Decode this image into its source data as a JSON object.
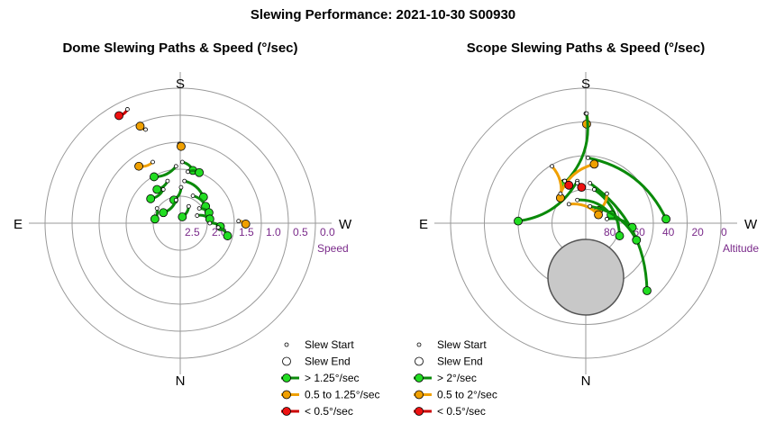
{
  "title": "Slewing Performance: 2021-10-30 S00930",
  "colors": {
    "green": "#0a8a0a",
    "green_fill": "#22dd22",
    "orange": "#f0a000",
    "orange_fill": "#f0a000",
    "red": "#cc0000",
    "red_fill": "#ee1111",
    "ring": "#999999",
    "axis_label": "#7a2a8a"
  },
  "chart_data": [
    {
      "type": "polar",
      "title": "Dome Slewing Paths & Speed (°/sec)",
      "directions": {
        "top": "S",
        "bottom": "N",
        "left": "E",
        "right": "W"
      },
      "radial_label": "Speed",
      "radial_ticks": [
        "2.5",
        "2.0",
        "1.5",
        "1.0",
        "0.5",
        "0.0"
      ],
      "radial_range": [
        2.5,
        0.0
      ],
      "legend": [
        "Slew Start",
        "Slew End",
        "> 1.25°/sec",
        "0.5 to 1.25°/sec",
        "< 0.5°/sec"
      ],
      "slews": [
        {
          "speed_class": "slow",
          "start": [
            -1.25,
            2.7
          ],
          "end": [
            -1.45,
            2.55
          ]
        },
        {
          "speed_class": "medium",
          "start": [
            -0.82,
            2.22
          ],
          "end": [
            -0.95,
            2.3
          ]
        },
        {
          "speed_class": "medium",
          "start": [
            -0.02,
            1.88
          ],
          "end": [
            0.02,
            1.82
          ]
        },
        {
          "speed_class": "medium",
          "start": [
            -0.65,
            1.45
          ],
          "end": [
            -0.98,
            1.35
          ]
        },
        {
          "speed_class": "fast",
          "start": [
            -0.1,
            1.35
          ],
          "end": [
            -0.62,
            1.1
          ]
        },
        {
          "speed_class": "fast",
          "start": [
            0.05,
            1.45
          ],
          "end": [
            0.3,
            1.25
          ]
        },
        {
          "speed_class": "fast",
          "start": [
            0.18,
            1.22
          ],
          "end": [
            0.45,
            1.2
          ]
        },
        {
          "speed_class": "fast",
          "start": [
            -0.3,
            1.0
          ],
          "end": [
            -0.55,
            0.8
          ]
        },
        {
          "speed_class": "fast",
          "start": [
            0.1,
            1.0
          ],
          "end": [
            0.55,
            0.62
          ]
        },
        {
          "speed_class": "fast",
          "start": [
            -0.4,
            0.8
          ],
          "end": [
            -0.7,
            0.58
          ]
        },
        {
          "speed_class": "fast",
          "start": [
            0.02,
            0.85
          ],
          "end": [
            -0.15,
            0.55
          ]
        },
        {
          "speed_class": "fast",
          "start": [
            0.3,
            0.65
          ],
          "end": [
            0.6,
            0.4
          ]
        },
        {
          "speed_class": "fast",
          "start": [
            0.45,
            0.35
          ],
          "end": [
            0.68,
            0.25
          ]
        },
        {
          "speed_class": "fast",
          "start": [
            -0.55,
            0.35
          ],
          "end": [
            -0.6,
            0.1
          ]
        },
        {
          "speed_class": "fast",
          "start": [
            0.4,
            0.18
          ],
          "end": [
            0.7,
            0.1
          ]
        },
        {
          "speed_class": "fast",
          "start": [
            0.7,
            0.0
          ],
          "end": [
            0.95,
            -0.08
          ]
        },
        {
          "speed_class": "fast",
          "start": [
            0.9,
            -0.1
          ],
          "end": [
            1.12,
            -0.3
          ]
        },
        {
          "speed_class": "fast",
          "start": [
            -0.1,
            0.55
          ],
          "end": [
            -0.4,
            0.25
          ]
        },
        {
          "speed_class": "fast",
          "start": [
            0.2,
            0.4
          ],
          "end": [
            0.05,
            0.15
          ]
        },
        {
          "speed_class": "medium",
          "start": [
            1.38,
            0.05
          ],
          "end": [
            1.55,
            -0.02
          ]
        }
      ]
    },
    {
      "type": "polar",
      "title": "Scope Slewing Paths & Speed (°/sec)",
      "directions": {
        "top": "S",
        "bottom": "N",
        "left": "E",
        "right": "W"
      },
      "radial_label": "Altitude",
      "radial_ticks": [
        "80",
        "60",
        "40",
        "20",
        "0"
      ],
      "radial_range": [
        90,
        0
      ],
      "legend": [
        "Slew Start",
        "Slew End",
        "> 2°/sec",
        "0.5 to 2°/sec",
        "< 0.5°/sec"
      ],
      "slews": [
        {
          "speed_class": "medium",
          "start": [
            0.0,
            2.6
          ],
          "end": [
            0.02,
            2.35
          ]
        },
        {
          "speed_class": "fast",
          "start": [
            0.02,
            2.6
          ],
          "end": [
            -0.5,
            0.95
          ]
        },
        {
          "speed_class": "fast",
          "start": [
            0.05,
            1.55
          ],
          "end": [
            1.9,
            0.1
          ]
        },
        {
          "speed_class": "fast",
          "start": [
            -0.2,
            1.0
          ],
          "end": [
            -1.6,
            0.05
          ]
        },
        {
          "speed_class": "fast",
          "start": [
            0.1,
            0.95
          ],
          "end": [
            1.45,
            -1.6
          ]
        },
        {
          "speed_class": "fast",
          "start": [
            0.2,
            0.8
          ],
          "end": [
            0.8,
            -0.3
          ]
        },
        {
          "speed_class": "medium",
          "start": [
            -0.8,
            1.35
          ],
          "end": [
            -0.6,
            0.6
          ]
        },
        {
          "speed_class": "medium",
          "start": [
            -0.6,
            0.7
          ],
          "end": [
            0.2,
            1.4
          ]
        },
        {
          "speed_class": "medium",
          "start": [
            0.5,
            0.7
          ],
          "end": [
            0.3,
            0.3
          ]
        },
        {
          "speed_class": "medium",
          "start": [
            -0.4,
            0.45
          ],
          "end": [
            0.3,
            0.2
          ]
        },
        {
          "speed_class": "fast",
          "start": [
            -0.2,
            0.55
          ],
          "end": [
            0.6,
            0.2
          ]
        },
        {
          "speed_class": "fast",
          "start": [
            0.5,
            0.1
          ],
          "end": [
            1.1,
            -0.1
          ]
        },
        {
          "speed_class": "fast",
          "start": [
            0.1,
            0.4
          ],
          "end": [
            1.2,
            -0.4
          ]
        },
        {
          "speed_class": "slow",
          "start": [
            -0.5,
            1.0
          ],
          "end": [
            -0.4,
            0.9
          ]
        },
        {
          "speed_class": "slow",
          "start": [
            -0.2,
            0.95
          ],
          "end": [
            -0.1,
            0.85
          ]
        }
      ]
    }
  ]
}
